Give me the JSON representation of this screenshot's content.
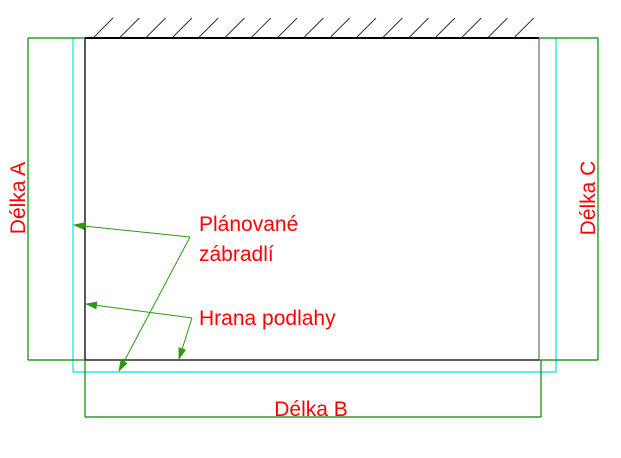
{
  "labels": {
    "length_a": "Délka A",
    "length_b": "Délka B",
    "length_c": "Délka C",
    "planned_railing_line1": "Plánované",
    "planned_railing_line2": "zábradlí",
    "floor_edge": "Hrana podlahy"
  },
  "colors": {
    "outline": "#000000",
    "dimension": "#008a00",
    "leader": "#2a9a10",
    "railing": "#00e5e5",
    "text": "#ff0000"
  }
}
